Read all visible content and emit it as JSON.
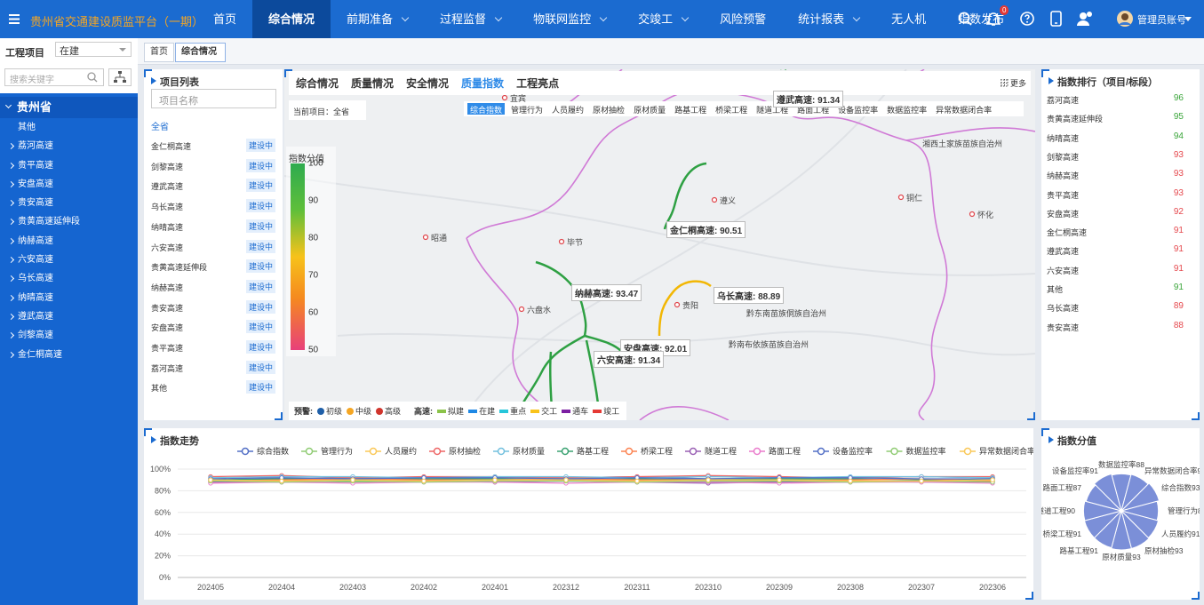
{
  "header": {
    "title": "贵州省交通建设质监平台（一期）",
    "menu": [
      {
        "label": "首页"
      },
      {
        "label": "综合情况",
        "active": true
      },
      {
        "label": "前期准备",
        "dropdown": true
      },
      {
        "label": "过程监督",
        "dropdown": true
      },
      {
        "label": "物联网监控",
        "dropdown": true
      },
      {
        "label": "交竣工",
        "dropdown": true
      },
      {
        "label": "风险预警"
      },
      {
        "label": "统计报表",
        "dropdown": true
      },
      {
        "label": "无人机"
      },
      {
        "label": "指数发布"
      }
    ],
    "notification_count": 0,
    "user": "管理员账号"
  },
  "sidebar": {
    "label": "工程项目",
    "status": "在建",
    "search_placeholder": "搜索关键字",
    "root": "贵州省",
    "items": [
      "其他",
      "荔河高速",
      "贵平高速",
      "安盘高速",
      "贵安高速",
      "贵黄高速延伸段",
      "纳赫高速",
      "六安高速",
      "乌长高速",
      "纳晴高速",
      "遵武高速",
      "剑黎高速",
      "金仁桐高速"
    ]
  },
  "tabs": [
    {
      "label": "首页"
    },
    {
      "label": "综合情况",
      "active": true,
      "closable": true
    }
  ],
  "project_list": {
    "title": "项目列表",
    "search_placeholder": "项目名称",
    "all": "全省",
    "items": [
      {
        "name": "金仁桐高速",
        "status": "建设中"
      },
      {
        "name": "剑黎高速",
        "status": "建设中"
      },
      {
        "name": "遵武高速",
        "status": "建设中"
      },
      {
        "name": "乌长高速",
        "status": "建设中"
      },
      {
        "name": "纳晴高速",
        "status": "建设中"
      },
      {
        "name": "六安高速",
        "status": "建设中"
      },
      {
        "name": "贵黄高速延伸段",
        "status": "建设中"
      },
      {
        "name": "纳赫高速",
        "status": "建设中"
      },
      {
        "name": "贵安高速",
        "status": "建设中"
      },
      {
        "name": "安盘高速",
        "status": "建设中"
      },
      {
        "name": "贵平高速",
        "status": "建设中"
      },
      {
        "name": "荔河高速",
        "status": "建设中"
      },
      {
        "name": "其他",
        "status": "建设中"
      }
    ]
  },
  "map": {
    "tabs": [
      {
        "label": "综合情况"
      },
      {
        "label": "质量情况"
      },
      {
        "label": "安全情况"
      },
      {
        "label": "质量指数",
        "active": true
      },
      {
        "label": "工程亮点"
      }
    ],
    "more": "更多",
    "current_project": "当前项目：全省",
    "index_tabs": [
      {
        "label": "综合指数",
        "active": true
      },
      {
        "label": "管理行为"
      },
      {
        "label": "人员履约"
      },
      {
        "label": "原材抽检"
      },
      {
        "label": "原材质量"
      },
      {
        "label": "路基工程"
      },
      {
        "label": "桥梁工程"
      },
      {
        "label": "隧道工程"
      },
      {
        "label": "路面工程"
      },
      {
        "label": "设备监控率"
      },
      {
        "label": "数据监控率"
      },
      {
        "label": "异常数据闭合率"
      }
    ],
    "legend_title": "指数分值",
    "legend_ticks": [
      100,
      90,
      80,
      70,
      60,
      50
    ],
    "road_labels": [
      "遵武高速: 91.34",
      "金仁桐高速: 90.51",
      "纳赫高速: 93.47",
      "乌长高速: 88.89",
      "安盘高速: 92.01",
      "六安高速: 91.34"
    ],
    "cities": [
      "宜宾",
      "遵义",
      "铜仁",
      "怀化",
      "昭通",
      "毕节",
      "六盘水",
      "贵阳",
      "湘西土家族苗族自治州",
      "黔东南苗族侗族自治州",
      "黔南布依族苗族自治州"
    ],
    "warning_label": "预警:",
    "warning_levels": [
      {
        "name": "初级",
        "color": "#1f5fa8"
      },
      {
        "name": "中级",
        "color": "#f5a623"
      },
      {
        "name": "高级",
        "color": "#d0342c"
      }
    ],
    "road_label": "高速:",
    "road_states": [
      {
        "name": "拟建",
        "color": "#8bc34a"
      },
      {
        "name": "在建",
        "color": "#1e88e5"
      },
      {
        "name": "重点",
        "color": "#26c6da"
      },
      {
        "name": "交工",
        "color": "#f9c31b"
      },
      {
        "name": "通车",
        "color": "#7b1fa2"
      },
      {
        "name": "竣工",
        "color": "#e53935"
      }
    ]
  },
  "ranking": {
    "title": "指数排行（项目/标段）",
    "items": [
      {
        "name": "荔河高速",
        "value": 96,
        "trend": "up"
      },
      {
        "name": "贵黄高速延伸段",
        "value": 95,
        "trend": "up"
      },
      {
        "name": "纳晴高速",
        "value": 94,
        "trend": "up"
      },
      {
        "name": "剑黎高速",
        "value": 93,
        "trend": "down"
      },
      {
        "name": "纳赫高速",
        "value": 93,
        "trend": "down"
      },
      {
        "name": "贵平高速",
        "value": 93,
        "trend": "down"
      },
      {
        "name": "安盘高速",
        "value": 92,
        "trend": "down"
      },
      {
        "name": "金仁桐高速",
        "value": 91,
        "trend": "down"
      },
      {
        "name": "遵武高速",
        "value": 91,
        "trend": "down"
      },
      {
        "name": "六安高速",
        "value": 91,
        "trend": "down"
      },
      {
        "name": "其他",
        "value": 91,
        "trend": "up"
      },
      {
        "name": "乌长高速",
        "value": 89,
        "trend": "down"
      },
      {
        "name": "贵安高速",
        "value": 88,
        "trend": "down"
      }
    ]
  },
  "chart_data": [
    {
      "type": "line",
      "title": "指数走势",
      "categories": [
        "202405",
        "202404",
        "202403",
        "202402",
        "202401",
        "202312",
        "202311",
        "202310",
        "202309",
        "202308",
        "202307",
        "202306"
      ],
      "ylim": [
        0,
        100
      ],
      "yticks": [
        {
          "value": 0,
          "label": "0%"
        },
        {
          "value": 20,
          "label": "20%"
        },
        {
          "value": 40,
          "label": "40%"
        },
        {
          "value": 60,
          "label": "60%"
        },
        {
          "value": 80,
          "label": "80%"
        },
        {
          "value": 100,
          "label": "100%"
        }
      ],
      "grid": true,
      "legend": "top",
      "series": [
        {
          "name": "综合指数",
          "color": "#5470c6",
          "values": [
            90,
            91,
            92,
            91,
            92,
            92,
            93,
            91,
            92,
            92,
            93,
            92
          ]
        },
        {
          "name": "管理行为",
          "color": "#91cc75",
          "values": [
            88,
            89,
            88,
            89,
            88,
            89,
            90,
            88,
            88,
            89,
            88,
            89
          ]
        },
        {
          "name": "人员履约",
          "color": "#fac858",
          "values": [
            91,
            90,
            91,
            90,
            91,
            91,
            90,
            91,
            91,
            90,
            91,
            90
          ]
        },
        {
          "name": "原材抽检",
          "color": "#ee6666",
          "values": [
            93,
            94,
            92,
            93,
            93,
            92,
            93,
            94,
            93,
            92,
            93,
            93
          ]
        },
        {
          "name": "原材质量",
          "color": "#73c0de",
          "values": [
            92,
            93,
            93,
            92,
            93,
            93,
            92,
            93,
            92,
            93,
            93,
            92
          ]
        },
        {
          "name": "路基工程",
          "color": "#3ba272",
          "values": [
            90,
            91,
            90,
            91,
            91,
            90,
            91,
            90,
            91,
            91,
            90,
            91
          ]
        },
        {
          "name": "桥梁工程",
          "color": "#fc8452",
          "values": [
            89,
            90,
            91,
            90,
            90,
            91,
            90,
            90,
            89,
            90,
            91,
            89
          ]
        },
        {
          "name": "隧道工程",
          "color": "#9a60b4",
          "values": [
            88,
            88,
            89,
            89,
            88,
            89,
            88,
            87,
            88,
            88,
            89,
            88
          ]
        },
        {
          "name": "路面工程",
          "color": "#ea7ccc",
          "values": [
            87,
            88,
            87,
            88,
            88,
            87,
            88,
            88,
            87,
            88,
            88,
            87
          ]
        },
        {
          "name": "设备监控率",
          "color": "#5470c6",
          "values": [
            91,
            92,
            91,
            92,
            92,
            91,
            92,
            91,
            92,
            92,
            91,
            91
          ]
        },
        {
          "name": "数据监控率",
          "color": "#91cc75",
          "values": [
            89,
            88,
            89,
            88,
            89,
            89,
            88,
            89,
            89,
            88,
            89,
            88
          ]
        },
        {
          "name": "异常数据闭合率",
          "color": "#fac858",
          "values": [
            90,
            89,
            90,
            89,
            90,
            90,
            89,
            90,
            90,
            89,
            89,
            90
          ]
        }
      ]
    },
    {
      "type": "rose",
      "title": "指数分值",
      "color": "#7b8fd8",
      "categories": [
        "综合指数",
        "管理行为",
        "人员履约",
        "原材抽检",
        "原材质量",
        "路基工程",
        "桥梁工程",
        "隧道工程",
        "路面工程",
        "设备监控率",
        "数据监控率",
        "异常数据闭合率"
      ],
      "values": [
        93,
        88,
        91,
        93,
        93,
        91,
        91,
        90,
        87,
        91,
        88,
        90
      ]
    }
  ]
}
